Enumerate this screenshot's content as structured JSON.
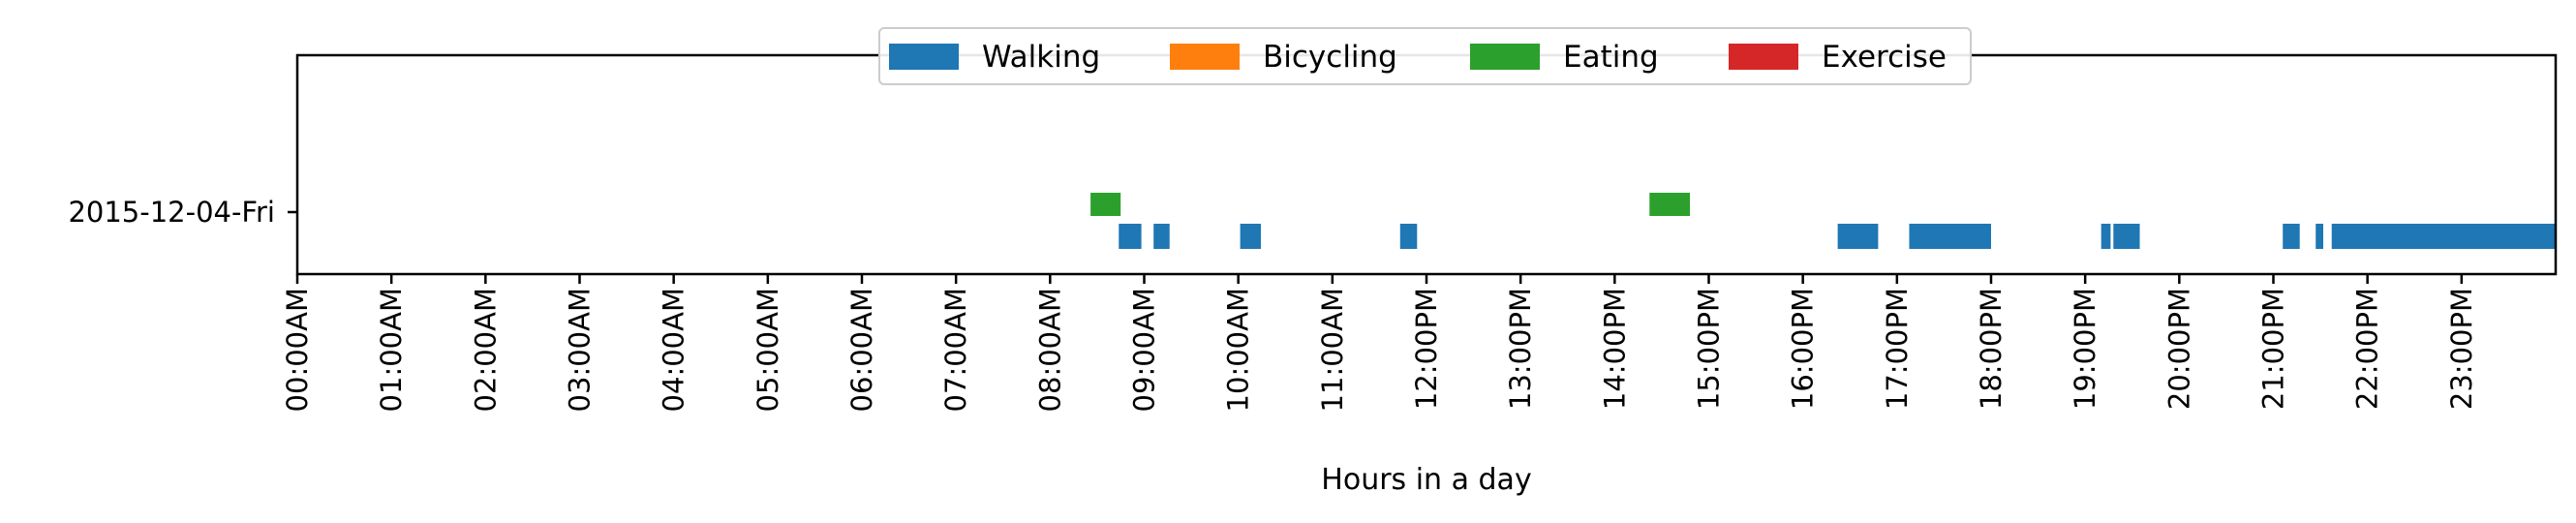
{
  "chart_data": {
    "type": "timeline",
    "xlabel": "Hours in a day",
    "ylabel": "",
    "xlim": [
      0,
      24
    ],
    "x_ticks": [
      {
        "value": 0,
        "label": "00:00AM"
      },
      {
        "value": 1,
        "label": "01:00AM"
      },
      {
        "value": 2,
        "label": "02:00AM"
      },
      {
        "value": 3,
        "label": "03:00AM"
      },
      {
        "value": 4,
        "label": "04:00AM"
      },
      {
        "value": 5,
        "label": "05:00AM"
      },
      {
        "value": 6,
        "label": "06:00AM"
      },
      {
        "value": 7,
        "label": "07:00AM"
      },
      {
        "value": 8,
        "label": "08:00AM"
      },
      {
        "value": 9,
        "label": "09:00AM"
      },
      {
        "value": 10,
        "label": "10:00AM"
      },
      {
        "value": 11,
        "label": "11:00AM"
      },
      {
        "value": 12,
        "label": "12:00PM"
      },
      {
        "value": 13,
        "label": "13:00PM"
      },
      {
        "value": 14,
        "label": "14:00PM"
      },
      {
        "value": 15,
        "label": "15:00PM"
      },
      {
        "value": 16,
        "label": "16:00PM"
      },
      {
        "value": 17,
        "label": "17:00PM"
      },
      {
        "value": 18,
        "label": "18:00PM"
      },
      {
        "value": 19,
        "label": "19:00PM"
      },
      {
        "value": 20,
        "label": "20:00PM"
      },
      {
        "value": 21,
        "label": "21:00PM"
      },
      {
        "value": 22,
        "label": "22:00PM"
      },
      {
        "value": 23,
        "label": "23:00PM"
      }
    ],
    "rows": [
      "2015-12-04-Fri"
    ],
    "legend_position": "top-center",
    "series": [
      {
        "name": "Walking",
        "color": "#1f77b4",
        "lane": "lower",
        "intervals": [
          [
            8.73,
            8.97
          ],
          [
            9.1,
            9.27
          ],
          [
            10.02,
            10.24
          ],
          [
            11.72,
            11.9
          ],
          [
            16.37,
            16.8
          ],
          [
            17.13,
            17.47
          ],
          [
            17.47,
            18.0
          ],
          [
            19.17,
            19.27
          ],
          [
            19.3,
            19.58
          ],
          [
            21.1,
            21.28
          ],
          [
            21.45,
            21.53
          ],
          [
            21.62,
            24.0
          ]
        ]
      },
      {
        "name": "Bicycling",
        "color": "#ff7f0e",
        "lane": "lower",
        "intervals": []
      },
      {
        "name": "Eating",
        "color": "#2ca02c",
        "lane": "upper",
        "intervals": [
          [
            8.43,
            8.75
          ],
          [
            14.37,
            14.8
          ]
        ]
      },
      {
        "name": "Exercise",
        "color": "#d62728",
        "lane": "upper",
        "intervals": []
      }
    ]
  }
}
